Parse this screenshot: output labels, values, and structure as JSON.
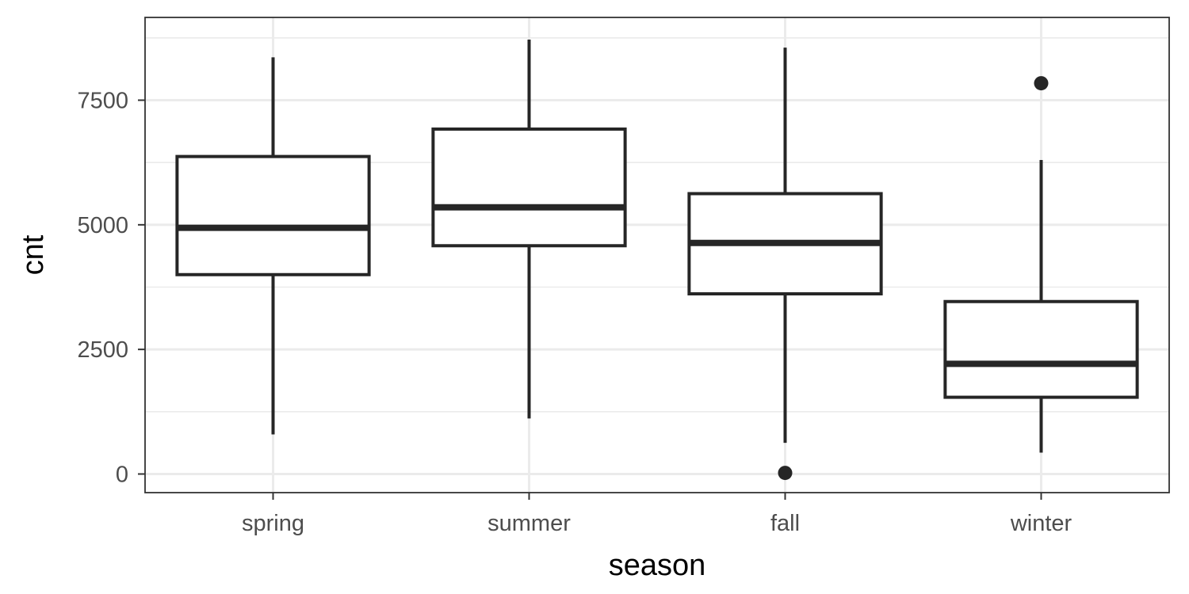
{
  "chart_data": {
    "type": "boxplot",
    "xlabel": "season",
    "ylabel": "cnt",
    "categories": [
      "spring",
      "summer",
      "fall",
      "winter"
    ],
    "boxes": [
      {
        "category": "spring",
        "whisker_low": 795,
        "q1": 4000,
        "median": 4940,
        "q3": 6370,
        "whisker_high": 8360,
        "outliers": []
      },
      {
        "category": "summer",
        "whisker_low": 1115,
        "q1": 4580,
        "median": 5350,
        "q3": 6920,
        "whisker_high": 8715,
        "outliers": []
      },
      {
        "category": "fall",
        "whisker_low": 625,
        "q1": 3615,
        "median": 4635,
        "q3": 5625,
        "whisker_high": 8555,
        "outliers": [
          22
        ]
      },
      {
        "category": "winter",
        "whisker_low": 430,
        "q1": 1540,
        "median": 2210,
        "q3": 3460,
        "whisker_high": 6300,
        "outliers": [
          7840
        ]
      }
    ],
    "y_ticks": [
      0,
      2500,
      5000,
      7500
    ],
    "y_tick_labels": [
      "0",
      "2500",
      "5000",
      "7500"
    ],
    "ylim": [
      -400,
      9100
    ],
    "grid": true,
    "colors": {
      "box_stroke": "#262626",
      "box_fill": "#ffffff",
      "grid": "#ebebeb",
      "panel_border": "#333333",
      "tick_text": "#4d4d4d"
    }
  }
}
